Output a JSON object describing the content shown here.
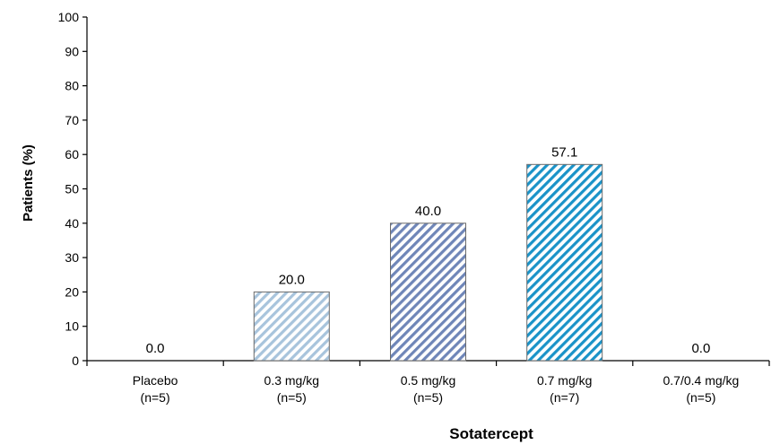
{
  "chart_data": {
    "type": "bar",
    "title": "",
    "ylabel": "Patients (%)",
    "xlabel": "Sotatercept",
    "ylim": [
      0,
      100
    ],
    "yticks": [
      0,
      10,
      20,
      30,
      40,
      50,
      60,
      70,
      80,
      90,
      100
    ],
    "categories": [
      {
        "line1": "Placebo",
        "line2": "(n=5)"
      },
      {
        "line1": "0.3 mg/kg",
        "line2": "(n=5)"
      },
      {
        "line1": "0.5 mg/kg",
        "line2": "(n=5)"
      },
      {
        "line1": "0.7 mg/kg",
        "line2": "(n=7)"
      },
      {
        "line1": "0.7/0.4 mg/kg",
        "line2": "(n=5)"
      }
    ],
    "values": [
      0.0,
      20.0,
      40.0,
      57.1,
      0.0
    ],
    "value_labels": [
      "0.0",
      "20.0",
      "40.0",
      "57.1",
      "0.0"
    ],
    "bar_colors": [
      "#8a9bb0",
      "#a8c4dc",
      "#6f86b8",
      "#1a93c8",
      "#8a9bb0"
    ],
    "legend": "none",
    "grid": false
  }
}
